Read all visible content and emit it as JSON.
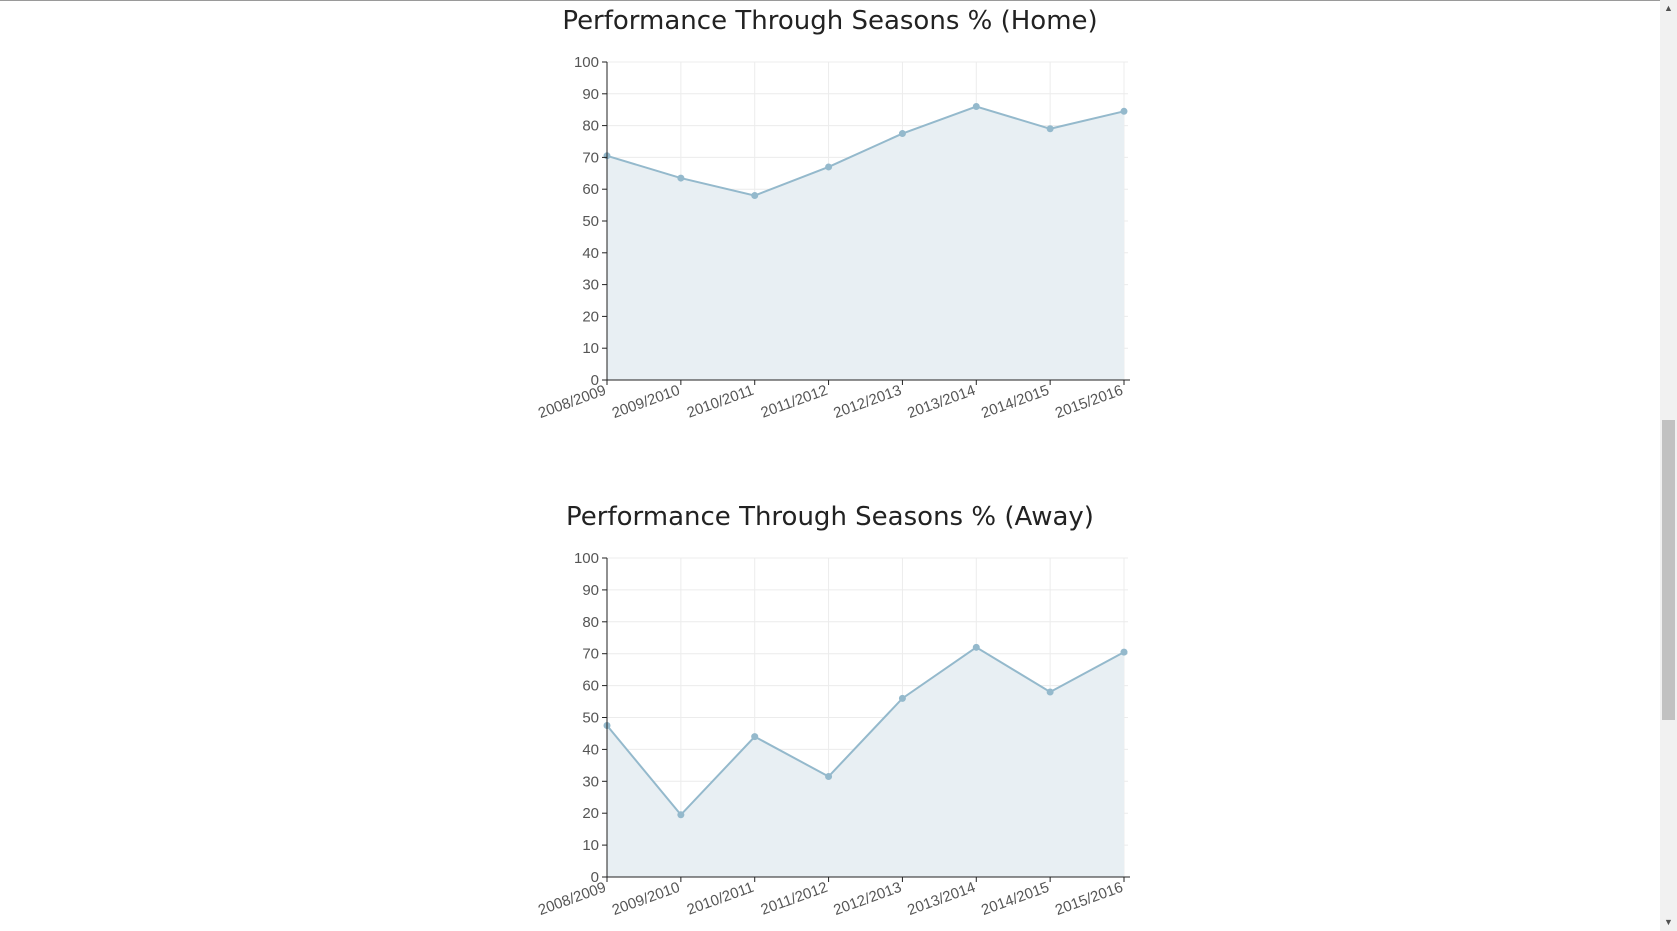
{
  "chart_data": [
    {
      "type": "area",
      "title": "Performance Through Seasons % (Home)",
      "categories": [
        "2008/2009",
        "2009/2010",
        "2010/2011",
        "2011/2012",
        "2012/2013",
        "2013/2014",
        "2014/2015",
        "2015/2016"
      ],
      "values": [
        70.5,
        63.5,
        58,
        67,
        77.5,
        86,
        79,
        84.5
      ],
      "ylim": [
        0,
        100
      ],
      "yticks": [
        0,
        10,
        20,
        30,
        40,
        50,
        60,
        70,
        80,
        90,
        100
      ],
      "xlabel": "",
      "ylabel": "",
      "grid": true,
      "colors": {
        "line": "#94b9cc",
        "fill": "#e8eff3"
      }
    },
    {
      "type": "area",
      "title": "Performance Through Seasons % (Away)",
      "categories": [
        "2008/2009",
        "2009/2010",
        "2010/2011",
        "2011/2012",
        "2012/2013",
        "2013/2014",
        "2014/2015",
        "2015/2016"
      ],
      "values": [
        47.5,
        19.5,
        44,
        31.5,
        56,
        72,
        58,
        70.5
      ],
      "ylim": [
        0,
        100
      ],
      "yticks": [
        0,
        10,
        20,
        30,
        40,
        50,
        60,
        70,
        80,
        90,
        100
      ],
      "xlabel": "",
      "ylabel": "",
      "grid": true,
      "colors": {
        "line": "#94b9cc",
        "fill": "#e8eff3"
      }
    }
  ],
  "scrollbar": {
    "up_icon": "chevron-up-icon",
    "down_icon": "chevron-down-icon"
  }
}
